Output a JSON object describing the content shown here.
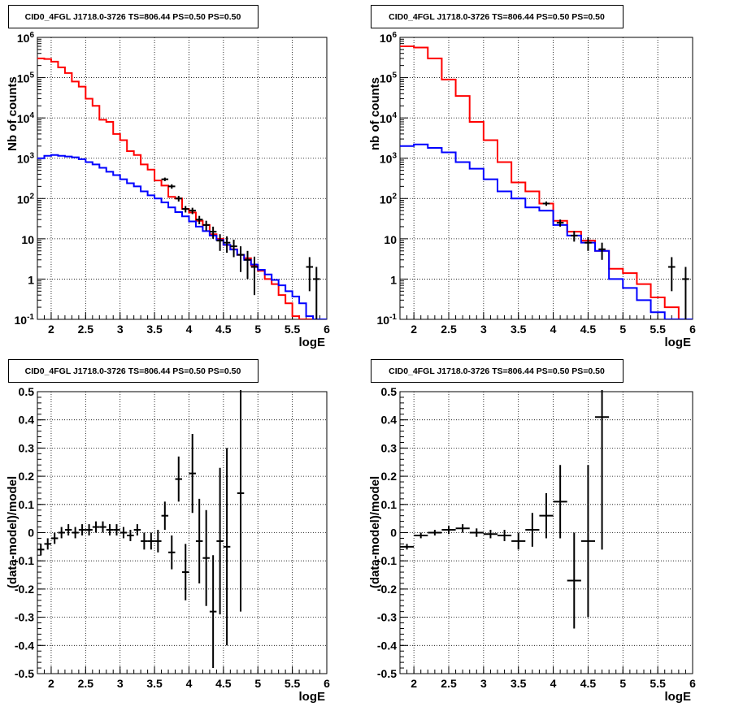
{
  "chart_data": [
    {
      "type": "step-histogram+errorbars",
      "title": "CID0_4FGL J1718.0-3726 TS=806.44 PS=0.50 PS=0.50",
      "xlabel": "logE",
      "ylabel": "Nb of counts",
      "yscale": "log",
      "xlim": [
        1.8,
        6.0
      ],
      "ylim": [
        0.1,
        1000000
      ],
      "grid": true,
      "x_ticks": [
        "2",
        "2.5",
        "3",
        "3.5",
        "4",
        "4.5",
        "5",
        "5.5",
        "6"
      ],
      "y_ticks": [
        "10^-1",
        "1",
        "10",
        "10^2",
        "10^3",
        "10^4",
        "10^5",
        "10^6"
      ],
      "series": [
        {
          "color": "#ff0000",
          "style": "step",
          "edges": [
            1.8,
            1.9,
            2.0,
            2.1,
            2.2,
            2.3,
            2.4,
            2.5,
            2.6,
            2.7,
            2.8,
            2.9,
            3.0,
            3.1,
            3.2,
            3.3,
            3.4,
            3.5,
            3.6,
            3.7,
            3.8,
            3.9,
            4.0,
            4.1,
            4.2,
            4.3,
            4.4,
            4.5,
            4.6,
            4.7,
            4.8,
            4.9,
            5.0,
            5.1,
            5.2,
            5.3,
            5.4,
            5.5,
            5.6,
            5.7,
            5.8,
            5.9,
            6.0
          ],
          "values": [
            300000,
            290000,
            250000,
            180000,
            130000,
            80000,
            60000,
            30000,
            20000,
            9000,
            8000,
            4000,
            2800,
            1500,
            1200,
            700,
            520,
            280,
            210,
            110,
            100,
            55,
            45,
            28,
            22,
            13,
            10,
            7,
            5.5,
            4,
            3.3,
            2.2,
            1.6,
            1.0,
            0.75,
            0.4,
            0.25,
            0.12,
            0.1,
            0.1,
            0.1,
            0.1
          ]
        },
        {
          "color": "#0000ff",
          "style": "step",
          "edges": [
            1.8,
            1.9,
            2.0,
            2.1,
            2.2,
            2.3,
            2.4,
            2.5,
            2.6,
            2.7,
            2.8,
            2.9,
            3.0,
            3.1,
            3.2,
            3.3,
            3.4,
            3.5,
            3.6,
            3.7,
            3.8,
            3.9,
            4.0,
            4.1,
            4.2,
            4.3,
            4.4,
            4.5,
            4.6,
            4.7,
            4.8,
            4.9,
            5.0,
            5.1,
            5.2,
            5.3,
            5.4,
            5.5,
            5.6,
            5.7,
            5.8,
            5.9,
            6.0
          ],
          "values": [
            1000,
            1150,
            1200,
            1150,
            1100,
            1050,
            950,
            800,
            700,
            580,
            460,
            380,
            300,
            240,
            200,
            150,
            120,
            100,
            80,
            60,
            46,
            36,
            27,
            20,
            15.5,
            12,
            9.3,
            7.1,
            5.4,
            4,
            3,
            2.3,
            1.7,
            1.3,
            0.95,
            0.7,
            0.5,
            0.37,
            0.25,
            0.12,
            0.1,
            0.1
          ]
        },
        {
          "color": "#000000",
          "style": "errorbars",
          "points": [
            [
              3.65,
              300,
              30
            ],
            [
              3.75,
              200,
              25
            ],
            [
              3.85,
              100,
              16
            ],
            [
              3.95,
              55,
              10
            ],
            [
              4.05,
              50,
              9
            ],
            [
              4.15,
              30,
              7
            ],
            [
              4.25,
              22,
              6
            ],
            [
              4.35,
              15,
              5
            ],
            [
              4.45,
              9,
              4
            ],
            [
              4.55,
              8,
              3.5
            ],
            [
              4.65,
              6.5,
              3
            ],
            [
              4.75,
              4,
              2.5
            ],
            [
              4.85,
              3,
              2
            ],
            [
              4.95,
              2,
              1.6
            ],
            [
              5.75,
              2,
              1.5
            ],
            [
              5.85,
              1,
              1
            ]
          ]
        }
      ]
    },
    {
      "type": "step-histogram+errorbars",
      "title": "CID0_4FGL J1718.0-3726 TS=806.44 PS=0.50 PS=0.50",
      "xlabel": "logE",
      "ylabel": "nb of counts",
      "yscale": "log",
      "xlim": [
        1.8,
        6.0
      ],
      "ylim": [
        0.1,
        1000000
      ],
      "grid": true,
      "x_ticks": [
        "2",
        "2.5",
        "3",
        "3.5",
        "4",
        "4.5",
        "5",
        "5.5",
        "6"
      ],
      "y_ticks": [
        "10^-1",
        "1",
        "10",
        "10^2",
        "10^3",
        "10^4",
        "10^5",
        "10^6"
      ],
      "series": [
        {
          "color": "#ff0000",
          "style": "step",
          "edges": [
            1.8,
            2.0,
            2.2,
            2.4,
            2.6,
            2.8,
            3.0,
            3.2,
            3.4,
            3.6,
            3.8,
            4.0,
            4.2,
            4.4,
            4.6,
            4.8,
            5.0,
            5.2,
            5.4,
            5.6,
            5.8,
            6.0
          ],
          "values": [
            600000,
            560000,
            300000,
            90000,
            35000,
            8000,
            2800,
            800,
            250,
            150,
            75,
            28,
            15,
            9,
            5,
            1.8,
            1.4,
            0.75,
            0.35,
            0.2,
            0.1
          ]
        },
        {
          "color": "#0000ff",
          "style": "step",
          "edges": [
            1.8,
            2.0,
            2.2,
            2.4,
            2.6,
            2.8,
            3.0,
            3.2,
            3.4,
            3.6,
            3.8,
            4.0,
            4.2,
            4.4,
            4.6,
            4.8,
            5.0,
            5.2,
            5.4,
            5.6,
            5.8,
            6.0
          ],
          "values": [
            2000,
            2200,
            1800,
            1400,
            800,
            550,
            300,
            150,
            100,
            60,
            50,
            22,
            12,
            8,
            5,
            1,
            0.6,
            0.3,
            0.15,
            0.1,
            0.1
          ]
        },
        {
          "color": "#000000",
          "style": "errorbars",
          "points": [
            [
              3.9,
              75,
              9
            ],
            [
              4.1,
              25,
              5
            ],
            [
              4.3,
              12,
              3.5
            ],
            [
              4.5,
              8,
              3
            ],
            [
              4.7,
              5.5,
              2.5
            ],
            [
              5.7,
              2,
              1.5
            ],
            [
              5.9,
              1,
              1
            ]
          ]
        }
      ]
    },
    {
      "type": "errorbars",
      "title": "CID0_4FGL J1718.0-3726 TS=806.44 PS=0.50 PS=0.50",
      "xlabel": "logE",
      "ylabel": "(data-model)/model",
      "xlim": [
        1.8,
        6.0
      ],
      "ylim": [
        -0.5,
        0.5
      ],
      "grid": true,
      "x_ticks": [
        "2",
        "2.5",
        "3",
        "3.5",
        "4",
        "4.5",
        "5",
        "5.5",
        "6"
      ],
      "y_ticks": [
        "-0.5",
        "-0.4",
        "-0.3",
        "-0.2",
        "-0.1",
        "0",
        "0.1",
        "0.2",
        "0.3",
        "0.4",
        "0.5"
      ],
      "points": [
        [
          1.85,
          -0.06,
          0.02
        ],
        [
          1.95,
          -0.04,
          0.02
        ],
        [
          2.05,
          -0.02,
          0.02
        ],
        [
          2.15,
          0.0,
          0.02
        ],
        [
          2.25,
          0.01,
          0.02
        ],
        [
          2.35,
          0.0,
          0.02
        ],
        [
          2.45,
          0.01,
          0.02
        ],
        [
          2.55,
          0.01,
          0.02
        ],
        [
          2.65,
          0.02,
          0.02
        ],
        [
          2.75,
          0.02,
          0.02
        ],
        [
          2.85,
          0.01,
          0.02
        ],
        [
          2.95,
          0.01,
          0.02
        ],
        [
          3.05,
          0.0,
          0.02
        ],
        [
          3.15,
          -0.01,
          0.02
        ],
        [
          3.25,
          0.01,
          0.02
        ],
        [
          3.35,
          -0.03,
          0.03
        ],
        [
          3.45,
          -0.03,
          0.03
        ],
        [
          3.55,
          -0.03,
          0.04
        ],
        [
          3.65,
          0.06,
          0.05
        ],
        [
          3.75,
          -0.07,
          0.06
        ],
        [
          3.85,
          0.19,
          0.08
        ],
        [
          3.95,
          -0.14,
          0.1
        ],
        [
          4.05,
          0.21,
          0.14
        ],
        [
          4.15,
          -0.03,
          0.15
        ],
        [
          4.25,
          -0.09,
          0.17
        ],
        [
          4.35,
          -0.28,
          0.2
        ],
        [
          4.45,
          -0.03,
          0.26
        ],
        [
          4.55,
          -0.05,
          0.35
        ],
        [
          4.75,
          0.14,
          0.42
        ]
      ]
    },
    {
      "type": "errorbars",
      "title": "CID0_4FGL J1718.0-3726 TS=806.44 PS=0.50 PS=0.50",
      "xlabel": "logE",
      "ylabel": "(data-model)/model",
      "xlim": [
        1.8,
        6.0
      ],
      "ylim": [
        -0.5,
        0.5
      ],
      "grid": true,
      "x_ticks": [
        "2",
        "2.5",
        "3",
        "3.5",
        "4",
        "4.5",
        "5",
        "5.5",
        "6"
      ],
      "y_ticks": [
        "-0.5",
        "-0.4",
        "-0.3",
        "-0.2",
        "-0.1",
        "0",
        "0.1",
        "0.2",
        "0.3",
        "0.4",
        "0.5"
      ],
      "points": [
        [
          1.9,
          -0.05,
          0.01
        ],
        [
          2.1,
          -0.01,
          0.01
        ],
        [
          2.3,
          0.0,
          0.01
        ],
        [
          2.5,
          0.01,
          0.015
        ],
        [
          2.7,
          0.015,
          0.015
        ],
        [
          2.9,
          0.0,
          0.015
        ],
        [
          3.1,
          -0.005,
          0.015
        ],
        [
          3.3,
          -0.01,
          0.02
        ],
        [
          3.5,
          -0.03,
          0.03
        ],
        [
          3.7,
          0.01,
          0.06
        ],
        [
          3.9,
          0.06,
          0.08
        ],
        [
          4.1,
          0.11,
          0.13
        ],
        [
          4.3,
          -0.17,
          0.17
        ],
        [
          4.5,
          -0.03,
          0.27
        ],
        [
          4.7,
          0.41,
          0.47
        ]
      ]
    }
  ]
}
